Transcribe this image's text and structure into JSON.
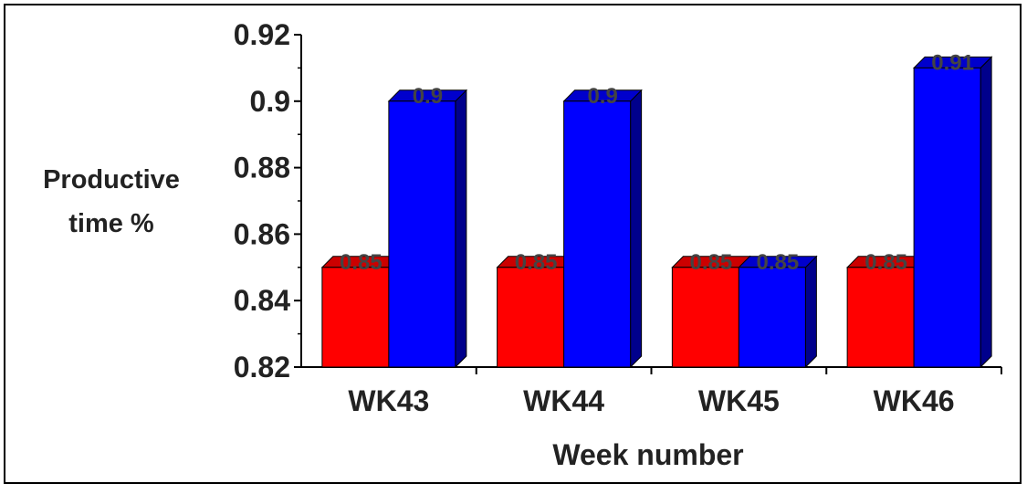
{
  "chart_data": {
    "type": "bar",
    "title": "",
    "xlabel": "Week number",
    "ylabel_lines": [
      "Productive",
      "time %"
    ],
    "categories": [
      "WK43",
      "WK44",
      "WK45",
      "WK46"
    ],
    "series": [
      {
        "color": "#ff0000",
        "values": [
          0.85,
          0.85,
          0.85,
          0.85
        ],
        "labels": [
          "0.85",
          "0.85",
          "0.85",
          "0.85"
        ]
      },
      {
        "color": "#0000ff",
        "values": [
          0.9,
          0.9,
          0.85,
          0.91
        ],
        "labels": [
          "0.9",
          "0.9",
          "0.85",
          "0.91"
        ]
      }
    ],
    "ylim": [
      0.82,
      0.92
    ],
    "yticks": [
      0.82,
      0.84,
      0.86,
      0.88,
      0.9,
      0.92
    ],
    "ytick_labels": [
      "0.82",
      "0.84",
      "0.86",
      "0.88",
      "0.9",
      "0.92"
    ],
    "grid": false,
    "legend": "none",
    "bar_style": "3d"
  }
}
